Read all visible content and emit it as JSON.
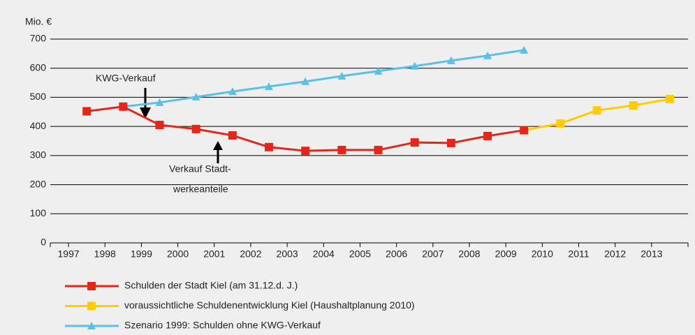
{
  "chart_data": {
    "type": "line",
    "y_label": "Mio. €",
    "x": [
      1997.5,
      1998.5,
      1999.5,
      2000.5,
      2001.5,
      2002.5,
      2003.5,
      2004.5,
      2005.5,
      2006.5,
      2007.5,
      2008.5,
      2009.5,
      2010.5,
      2011.5,
      2012.5,
      2013.5
    ],
    "series": [
      {
        "name": "Schulden der Stadt Kiel (am 31.12.d. J.)",
        "color": "#e32619",
        "marker": "square",
        "values": [
          452,
          468,
          405,
          391,
          369,
          329,
          316,
          319,
          319,
          345,
          343,
          367,
          387,
          null,
          null,
          null,
          null
        ]
      },
      {
        "name": "voraussichtliche Schuldenentwicklung Kiel (Haushaltplanung 2010)",
        "color": "#ffcc00",
        "marker": "square",
        "values": [
          null,
          null,
          null,
          null,
          null,
          null,
          null,
          null,
          null,
          null,
          null,
          null,
          387,
          410,
          455,
          472,
          494
        ]
      },
      {
        "name": "Szenario 1999: Schulden ohne KWG-Verkauf",
        "color": "#5bc0e8",
        "marker": "triangle",
        "values": [
          null,
          468,
          482,
          501,
          520,
          537,
          554,
          573,
          590,
          607,
          626,
          643,
          662,
          null,
          null,
          null,
          null
        ]
      }
    ],
    "xlim": [
      1996.5,
      2014
    ],
    "xticks": [
      1997,
      1998,
      1999,
      2000,
      2001,
      2002,
      2003,
      2004,
      2005,
      2006,
      2007,
      2008,
      2009,
      2010,
      2011,
      2012,
      2013
    ],
    "ylim": [
      0,
      700
    ],
    "yticks": [
      0,
      100,
      200,
      300,
      400,
      500,
      600,
      700
    ],
    "grid": true,
    "annotations": [
      "KWG-Verkauf",
      "Verkauf Stadt-",
      "werkeanteile"
    ]
  }
}
